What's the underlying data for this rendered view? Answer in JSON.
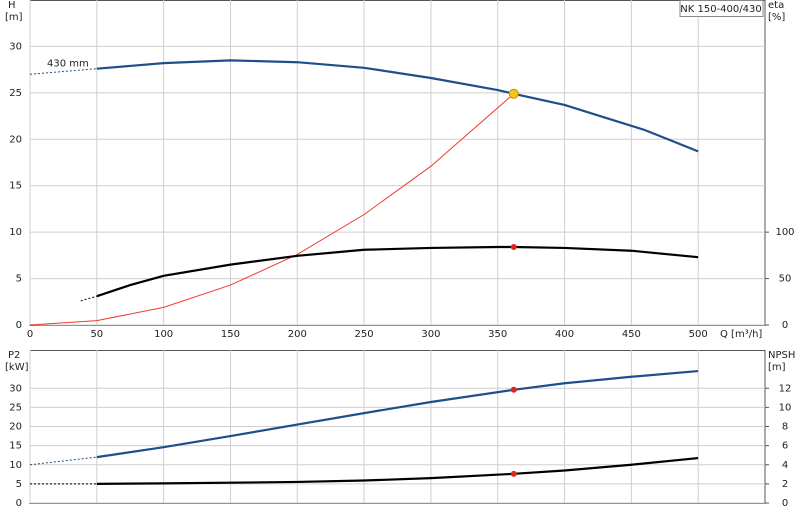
{
  "chart_data": [
    {
      "type": "line",
      "title": "NK 150-400/430",
      "ylabel": "H",
      "yunit": "[m]",
      "y2label": "eta",
      "y2unit": "[%]",
      "xlabel": "Q [m³/h]",
      "annotation": "430 mm",
      "xlim": [
        0,
        550
      ],
      "xticks": [
        0,
        50,
        100,
        150,
        200,
        250,
        300,
        350,
        400,
        450,
        500
      ],
      "ylim": [
        0,
        35
      ],
      "yticks": [
        0,
        5,
        10,
        15,
        20,
        25,
        30
      ],
      "y2lim": [
        0,
        350
      ],
      "y2ticks": [
        0,
        50,
        100
      ],
      "grid": true,
      "series": [
        {
          "color": "#1f4e8c",
          "width": 2.2,
          "x": [
            50,
            100,
            150,
            200,
            250,
            300,
            350,
            362,
            400,
            420,
            460,
            500
          ],
          "values": [
            27.6,
            28.2,
            28.5,
            28.3,
            27.7,
            26.6,
            25.3,
            24.9,
            23.7,
            22.8,
            21.0,
            18.7
          ]
        },
        {
          "color": "#1f4e8c",
          "width": 1,
          "dashed": true,
          "x": [
            0,
            50
          ],
          "values": [
            27.0,
            27.6
          ]
        },
        {
          "color": "#f03a2e",
          "width": 1,
          "x": [
            0,
            50,
            100,
            150,
            200,
            250,
            300,
            362
          ],
          "values": [
            0,
            0.47,
            1.9,
            4.3,
            7.6,
            11.9,
            17.1,
            24.9
          ]
        },
        {
          "color": "#000000",
          "width": 2.2,
          "axis": "y2",
          "x": [
            50,
            75,
            100,
            150,
            200,
            250,
            300,
            350,
            362,
            400,
            450,
            500
          ],
          "values": [
            31,
            43,
            53,
            65,
            74.5,
            81,
            83,
            84,
            84,
            83,
            80,
            73
          ]
        },
        {
          "color": "#000000",
          "width": 1,
          "dashed": true,
          "axis": "y2",
          "x": [
            38,
            50
          ],
          "values": [
            26,
            31
          ]
        }
      ],
      "points": [
        {
          "x": 362,
          "y": 24.9,
          "color": "#f5c518"
        },
        {
          "x": 362,
          "y": 84,
          "axis": "y2",
          "color": "#e8231e"
        }
      ]
    },
    {
      "type": "line",
      "ylabel": "P2",
      "yunit": "[kW]",
      "y2label": "NPSH",
      "y2unit": "[m]",
      "xlim": [
        0,
        550
      ],
      "xticks": [
        0,
        50,
        100,
        150,
        200,
        250,
        300,
        350,
        400,
        450,
        500
      ],
      "ylim": [
        0,
        40
      ],
      "yticks": [
        0,
        5,
        10,
        15,
        20,
        25,
        30
      ],
      "y2lim": [
        0,
        16
      ],
      "y2ticks": [
        0,
        2,
        4,
        6,
        8,
        10,
        12
      ],
      "grid": true,
      "series": [
        {
          "color": "#1f4e8c",
          "width": 2.2,
          "x": [
            50,
            100,
            150,
            200,
            250,
            300,
            362,
            400,
            450,
            500
          ],
          "values": [
            12,
            14.6,
            17.5,
            20.5,
            23.5,
            26.4,
            29.6,
            31.3,
            33,
            34.5
          ]
        },
        {
          "color": "#1f4e8c",
          "width": 1,
          "dashed": true,
          "x": [
            0,
            50
          ],
          "values": [
            10,
            12
          ]
        },
        {
          "color": "#000000",
          "width": 2.2,
          "axis": "y2",
          "x": [
            50,
            100,
            200,
            250,
            300,
            362,
            400,
            450,
            500
          ],
          "values": [
            2,
            2.05,
            2.2,
            2.35,
            2.6,
            3.05,
            3.4,
            4.0,
            4.7
          ]
        },
        {
          "color": "#000000",
          "width": 1,
          "dashed": true,
          "axis": "y2",
          "x": [
            0,
            50
          ],
          "values": [
            2,
            2
          ]
        }
      ],
      "points": [
        {
          "x": 362,
          "y": 29.6,
          "color": "#e8231e"
        },
        {
          "x": 362,
          "y": 3.05,
          "axis": "y2",
          "color": "#e8231e"
        }
      ]
    }
  ]
}
